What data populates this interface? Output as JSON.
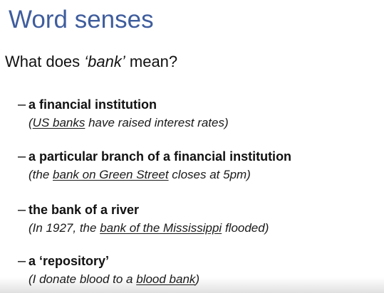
{
  "slide": {
    "title": "Word senses",
    "question": {
      "prefix": "What does ",
      "word": "‘bank’",
      "suffix": " mean?"
    },
    "dash": "–",
    "senses": [
      {
        "definition": "a financial institution",
        "example": {
          "before": "(",
          "underlined": "US banks",
          "after": " have raised interest rates)"
        }
      },
      {
        "definition": "a particular branch of a financial institution",
        "example": {
          "before": "(the ",
          "underlined": "bank on Green Street",
          "after": " closes at 5pm)"
        }
      },
      {
        "definition": "the bank of a river",
        "example": {
          "before": "(In 1927, the ",
          "underlined": "bank of the Mississippi",
          "after": " flooded)"
        }
      },
      {
        "definition": "a ‘repository’",
        "example": {
          "before": "(I donate blood to a ",
          "underlined": "blood bank",
          "after": ")"
        }
      }
    ]
  }
}
